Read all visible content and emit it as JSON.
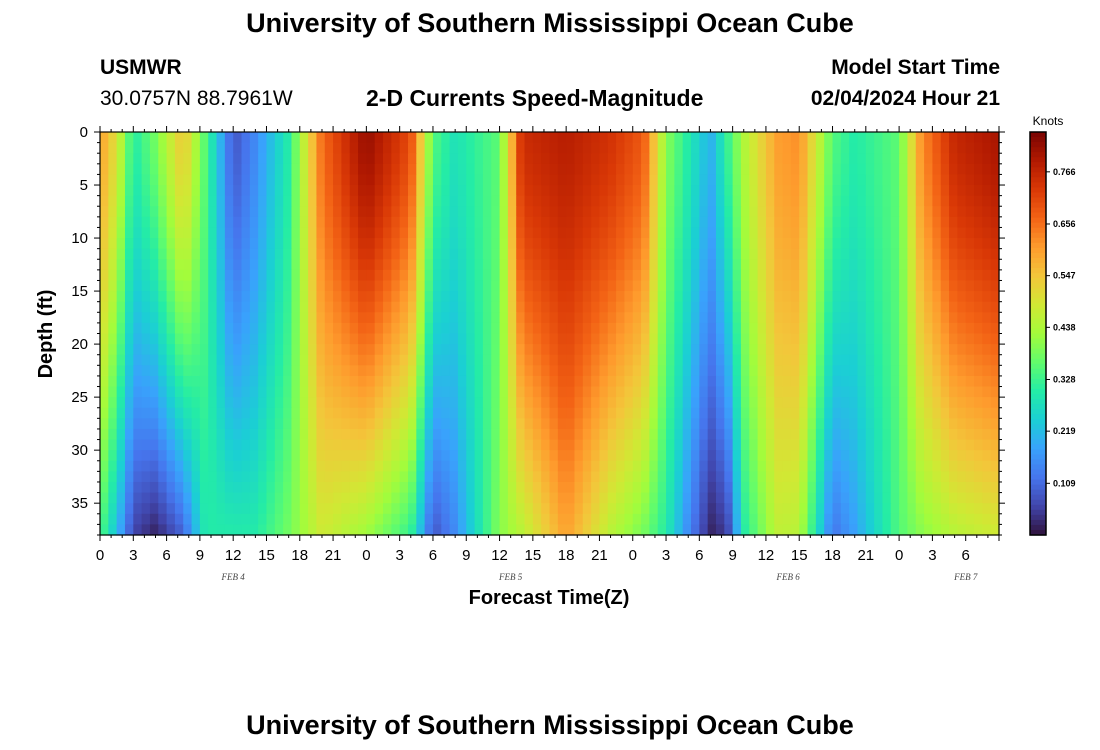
{
  "header": {
    "title": "University of Southern Mississippi Ocean Cube",
    "station": "USMWR",
    "coords": "30.0757N  88.7961W",
    "subtitle": "2-D Currents Speed-Magnitude",
    "model_start_label": "Model Start Time",
    "model_start_value": "02/04/2024 Hour 21"
  },
  "footer": {
    "title": "University of Southern Mississippi Ocean Cube"
  },
  "chart_data": {
    "type": "heatmap",
    "title": "2-D Currents Speed-Magnitude",
    "xlabel": "Forecast Time(Z)",
    "ylabel": "Depth (ft)",
    "x_unit": "hours",
    "x_range": [
      0,
      81
    ],
    "y_range": [
      0,
      38
    ],
    "y_ticks": [
      0,
      5,
      10,
      15,
      20,
      25,
      30,
      35
    ],
    "x_tick_labels": [
      "0",
      "3",
      "6",
      "9",
      "12",
      "15",
      "18",
      "21",
      "0",
      "3",
      "6",
      "9",
      "12",
      "15",
      "18",
      "21",
      "0",
      "3",
      "6",
      "9",
      "12",
      "15",
      "18",
      "21",
      "0",
      "3",
      "6"
    ],
    "date_labels": [
      {
        "label": "FEB 4",
        "hour": 12
      },
      {
        "label": "FEB 5",
        "hour": 37
      },
      {
        "label": "FEB 6",
        "hour": 62
      },
      {
        "label": "FEB 7",
        "hour": 78
      }
    ],
    "colorbar": {
      "unit": "Knots",
      "range": [
        0,
        0.85
      ],
      "ticks": [
        "0.109",
        "0.219",
        "0.328",
        "0.438",
        "0.547",
        "0.656",
        "0.766"
      ],
      "colors": [
        "#30123b",
        "#4145ab",
        "#4675ed",
        "#39a2fc",
        "#1bcfd4",
        "#24eca6",
        "#61fc6c",
        "#a4fc3b",
        "#d1e834",
        "#f3c63a",
        "#fe9b2d",
        "#f36315",
        "#d93806",
        "#b11901",
        "#7a0402"
      ]
    },
    "speed_columns_knots": [
      {
        "hour": 0,
        "surface": 0.6,
        "bottom": 0.35
      },
      {
        "hour": 1.5,
        "surface": 0.5,
        "bottom": 0.22
      },
      {
        "hour": 3,
        "surface": 0.3,
        "bottom": 0.06
      },
      {
        "hour": 5,
        "surface": 0.38,
        "bottom": 0.02
      },
      {
        "hour": 7.5,
        "surface": 0.55,
        "bottom": 0.1
      },
      {
        "hour": 9.5,
        "surface": 0.35,
        "bottom": 0.3
      },
      {
        "hour": 12,
        "surface": 0.08,
        "bottom": 0.3
      },
      {
        "hour": 14,
        "surface": 0.15,
        "bottom": 0.3
      },
      {
        "hour": 17,
        "surface": 0.3,
        "bottom": 0.38
      },
      {
        "hour": 20,
        "surface": 0.66,
        "bottom": 0.48
      },
      {
        "hour": 24,
        "surface": 0.82,
        "bottom": 0.42
      },
      {
        "hour": 28,
        "surface": 0.7,
        "bottom": 0.32
      },
      {
        "hour": 30,
        "surface": 0.35,
        "bottom": 0.08
      },
      {
        "hour": 32,
        "surface": 0.28,
        "bottom": 0.15
      },
      {
        "hour": 36,
        "surface": 0.36,
        "bottom": 0.4
      },
      {
        "hour": 38,
        "surface": 0.75,
        "bottom": 0.45
      },
      {
        "hour": 42,
        "surface": 0.78,
        "bottom": 0.6
      },
      {
        "hour": 46,
        "surface": 0.74,
        "bottom": 0.45
      },
      {
        "hour": 49,
        "surface": 0.68,
        "bottom": 0.38
      },
      {
        "hour": 51,
        "surface": 0.4,
        "bottom": 0.3
      },
      {
        "hour": 53,
        "surface": 0.3,
        "bottom": 0.15
      },
      {
        "hour": 55,
        "surface": 0.2,
        "bottom": 0.02
      },
      {
        "hour": 56.5,
        "surface": 0.32,
        "bottom": 0.05
      },
      {
        "hour": 58,
        "surface": 0.44,
        "bottom": 0.3
      },
      {
        "hour": 61,
        "surface": 0.6,
        "bottom": 0.46
      },
      {
        "hour": 63,
        "surface": 0.62,
        "bottom": 0.45
      },
      {
        "hour": 66,
        "surface": 0.35,
        "bottom": 0.12
      },
      {
        "hour": 68,
        "surface": 0.3,
        "bottom": 0.18
      },
      {
        "hour": 72,
        "surface": 0.36,
        "bottom": 0.35
      },
      {
        "hour": 74,
        "surface": 0.62,
        "bottom": 0.4
      },
      {
        "hour": 77,
        "surface": 0.76,
        "bottom": 0.45
      },
      {
        "hour": 81,
        "surface": 0.8,
        "bottom": 0.48
      }
    ]
  }
}
